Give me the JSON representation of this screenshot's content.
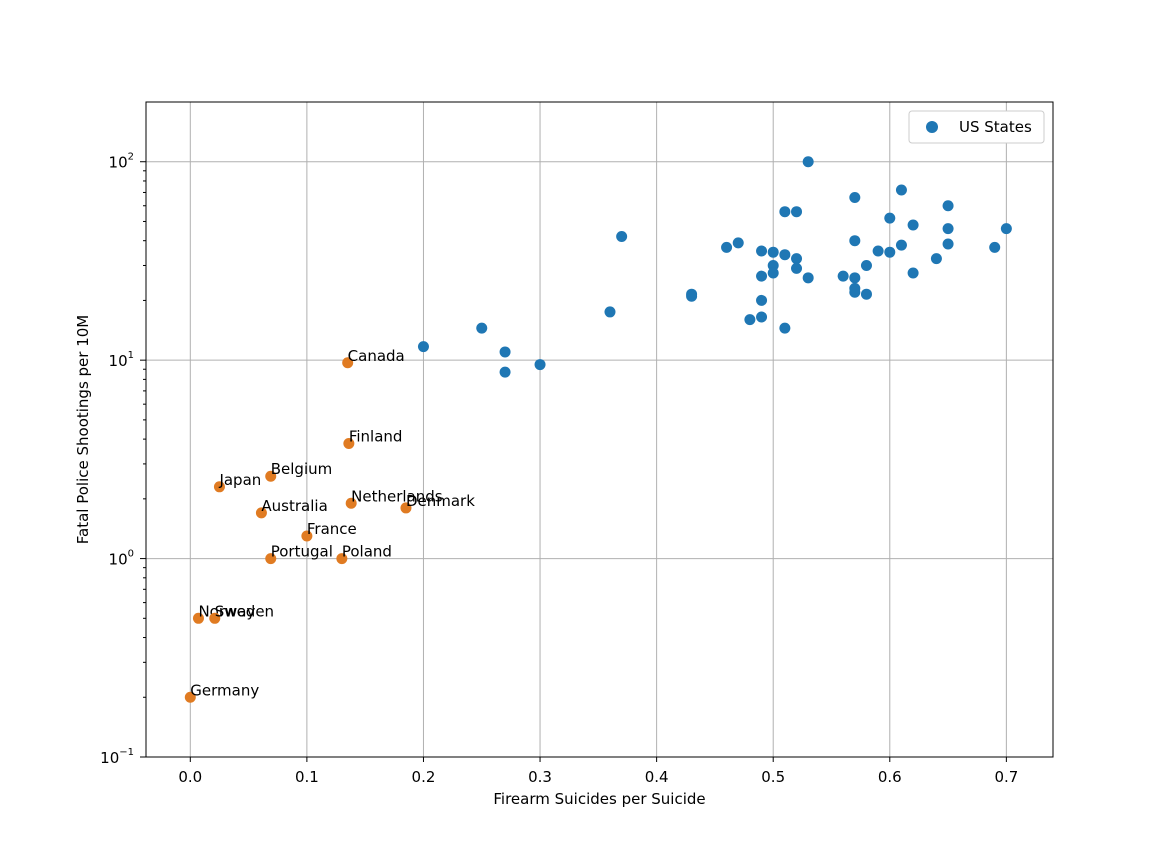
{
  "chart_data": {
    "type": "scatter",
    "title": "",
    "xlabel": "Firearm Suicides per Suicide",
    "ylabel": "Fatal Police Shootings per 10M",
    "xlim": [
      -0.038,
      0.74
    ],
    "ylim": [
      0.1,
      200
    ],
    "yscale": "log",
    "grid": true,
    "legend": {
      "position": "top-right",
      "entries": [
        "US States"
      ]
    },
    "x_ticks": [
      {
        "value": 0.0,
        "label": "0.0"
      },
      {
        "value": 0.1,
        "label": "0.1"
      },
      {
        "value": 0.2,
        "label": "0.2"
      },
      {
        "value": 0.3,
        "label": "0.3"
      },
      {
        "value": 0.4,
        "label": "0.4"
      },
      {
        "value": 0.5,
        "label": "0.5"
      },
      {
        "value": 0.6,
        "label": "0.6"
      },
      {
        "value": 0.7,
        "label": "0.7"
      }
    ],
    "y_ticks": [
      {
        "value": 0.1,
        "base": "10",
        "exp": "−1"
      },
      {
        "value": 1,
        "base": "10",
        "exp": "0"
      },
      {
        "value": 10,
        "base": "10",
        "exp": "1"
      },
      {
        "value": 100,
        "base": "10",
        "exp": "2"
      }
    ],
    "colors": {
      "us_states": "#1f77b4",
      "countries": "#e07b22",
      "grid": "#b0b0b0"
    },
    "series": [
      {
        "name": "US States",
        "points": [
          {
            "x": 0.53,
            "y": 100
          },
          {
            "x": 0.61,
            "y": 72
          },
          {
            "x": 0.57,
            "y": 66
          },
          {
            "x": 0.65,
            "y": 60
          },
          {
            "x": 0.51,
            "y": 56
          },
          {
            "x": 0.52,
            "y": 56
          },
          {
            "x": 0.6,
            "y": 52
          },
          {
            "x": 0.62,
            "y": 48
          },
          {
            "x": 0.65,
            "y": 46
          },
          {
            "x": 0.7,
            "y": 46
          },
          {
            "x": 0.37,
            "y": 42
          },
          {
            "x": 0.57,
            "y": 40
          },
          {
            "x": 0.47,
            "y": 39
          },
          {
            "x": 0.65,
            "y": 38.5
          },
          {
            "x": 0.61,
            "y": 38
          },
          {
            "x": 0.46,
            "y": 37
          },
          {
            "x": 0.69,
            "y": 37
          },
          {
            "x": 0.49,
            "y": 35.5
          },
          {
            "x": 0.59,
            "y": 35.5
          },
          {
            "x": 0.5,
            "y": 35
          },
          {
            "x": 0.6,
            "y": 35
          },
          {
            "x": 0.51,
            "y": 34
          },
          {
            "x": 0.52,
            "y": 32.5
          },
          {
            "x": 0.64,
            "y": 32.5
          },
          {
            "x": 0.5,
            "y": 30
          },
          {
            "x": 0.58,
            "y": 30
          },
          {
            "x": 0.52,
            "y": 29
          },
          {
            "x": 0.5,
            "y": 27.5
          },
          {
            "x": 0.62,
            "y": 27.5
          },
          {
            "x": 0.49,
            "y": 26.5
          },
          {
            "x": 0.56,
            "y": 26.5
          },
          {
            "x": 0.53,
            "y": 26
          },
          {
            "x": 0.57,
            "y": 26
          },
          {
            "x": 0.57,
            "y": 23
          },
          {
            "x": 0.57,
            "y": 22
          },
          {
            "x": 0.43,
            "y": 21.5
          },
          {
            "x": 0.58,
            "y": 21.5
          },
          {
            "x": 0.43,
            "y": 21
          },
          {
            "x": 0.49,
            "y": 20
          },
          {
            "x": 0.36,
            "y": 17.5
          },
          {
            "x": 0.49,
            "y": 16.5
          },
          {
            "x": 0.48,
            "y": 16
          },
          {
            "x": 0.25,
            "y": 14.5
          },
          {
            "x": 0.51,
            "y": 14.5
          },
          {
            "x": 0.2,
            "y": 11.7
          },
          {
            "x": 0.27,
            "y": 11
          },
          {
            "x": 0.3,
            "y": 9.5
          },
          {
            "x": 0.27,
            "y": 8.7
          }
        ]
      },
      {
        "points": [
          {
            "label": "Canada",
            "x": 0.135,
            "y": 9.7
          },
          {
            "label": "Finland",
            "x": 0.136,
            "y": 3.8
          },
          {
            "label": "Belgium",
            "x": 0.069,
            "y": 2.6
          },
          {
            "label": "Japan",
            "x": 0.025,
            "y": 2.3
          },
          {
            "label": "Netherlands",
            "x": 0.138,
            "y": 1.9
          },
          {
            "label": "Denmark",
            "x": 0.185,
            "y": 1.8
          },
          {
            "label": "Australia",
            "x": 0.061,
            "y": 1.7
          },
          {
            "label": "France",
            "x": 0.1,
            "y": 1.3
          },
          {
            "label": "Portugal",
            "x": 0.069,
            "y": 1.0
          },
          {
            "label": "Poland",
            "x": 0.13,
            "y": 1.0
          },
          {
            "label": "Norway",
            "x": 0.007,
            "y": 0.5
          },
          {
            "label": "Sweden",
            "x": 0.021,
            "y": 0.5
          },
          {
            "label": "Germany",
            "x": 0.0,
            "y": 0.2
          }
        ]
      }
    ]
  }
}
